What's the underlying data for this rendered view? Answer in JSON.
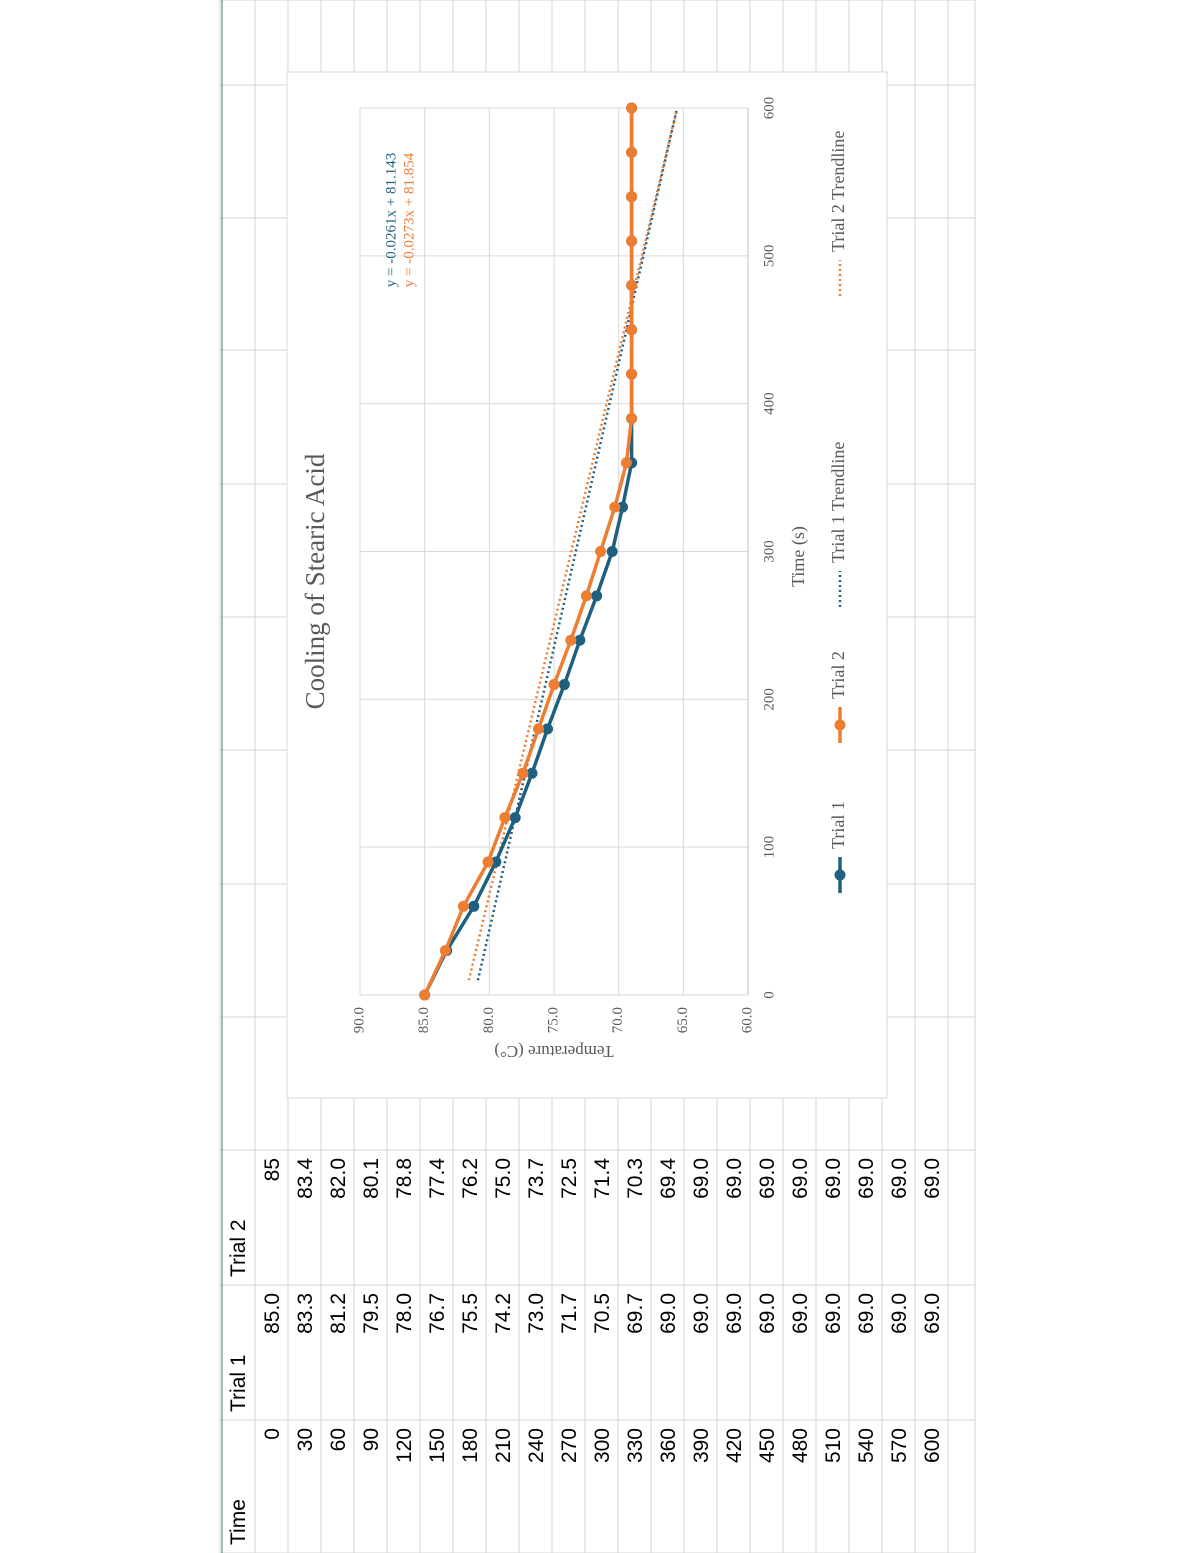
{
  "table": {
    "header": [
      "Time",
      "Trial 1",
      "Trial 2"
    ],
    "rows": [
      [
        "0",
        "85.0",
        "85"
      ],
      [
        "30",
        "83.3",
        "83.4"
      ],
      [
        "60",
        "81.2",
        "82.0"
      ],
      [
        "90",
        "79.5",
        "80.1"
      ],
      [
        "120",
        "78.0",
        "78.8"
      ],
      [
        "150",
        "76.7",
        "77.4"
      ],
      [
        "180",
        "75.5",
        "76.2"
      ],
      [
        "210",
        "74.2",
        "75.0"
      ],
      [
        "240",
        "73.0",
        "73.7"
      ],
      [
        "270",
        "71.7",
        "72.5"
      ],
      [
        "300",
        "70.5",
        "71.4"
      ],
      [
        "330",
        "69.7",
        "70.3"
      ],
      [
        "360",
        "69.0",
        "69.4"
      ],
      [
        "390",
        "69.0",
        "69.0"
      ],
      [
        "420",
        "69.0",
        "69.0"
      ],
      [
        "450",
        "69.0",
        "69.0"
      ],
      [
        "480",
        "69.0",
        "69.0"
      ],
      [
        "510",
        "69.0",
        "69.0"
      ],
      [
        "540",
        "69.0",
        "69.0"
      ],
      [
        "570",
        "69.0",
        "69.0"
      ],
      [
        "600",
        "69.0",
        "69.0"
      ]
    ]
  },
  "chart_data": {
    "type": "line",
    "title": "Cooling of Stearic Acid",
    "x_label": "Time (s)",
    "y_label": "Temperature (C°)",
    "x": [
      0,
      30,
      60,
      90,
      120,
      150,
      180,
      210,
      240,
      270,
      300,
      330,
      360,
      390,
      420,
      450,
      480,
      510,
      540,
      570,
      600
    ],
    "series": [
      {
        "name": "Trial 1",
        "color": "#1f5f7f",
        "values": [
          85.0,
          83.3,
          81.2,
          79.5,
          78.0,
          76.7,
          75.5,
          74.2,
          73.0,
          71.7,
          70.5,
          69.7,
          69.0,
          69.0,
          69.0,
          69.0,
          69.0,
          69.0,
          69.0,
          69.0,
          69.0
        ]
      },
      {
        "name": "Trial 2",
        "color": "#ed7d31",
        "values": [
          85,
          83.4,
          82.0,
          80.1,
          78.8,
          77.4,
          76.2,
          75.0,
          73.7,
          72.5,
          71.4,
          70.3,
          69.4,
          69.0,
          69.0,
          69.0,
          69.0,
          69.0,
          69.0,
          69.0,
          69.0
        ]
      }
    ],
    "trendlines": [
      {
        "name": "Trial 1 Trendline",
        "color": "#1f5f7f",
        "slope": -0.0261,
        "intercept": 81.143,
        "equation": "y = -0.0261x + 81.143"
      },
      {
        "name": "Trial 2 Trendline",
        "color": "#ed7d31",
        "slope": -0.0273,
        "intercept": 81.854,
        "equation": "y = -0.0273x + 81.854"
      }
    ],
    "xlim": [
      0,
      600
    ],
    "xticks": [
      0,
      100,
      200,
      300,
      400,
      500,
      600
    ],
    "ylim": [
      60,
      90
    ],
    "yticks": [
      {
        "value": 60,
        "label": "60.0"
      },
      {
        "value": 65,
        "label": "65.0"
      },
      {
        "value": 70,
        "label": "70.0"
      },
      {
        "value": 75,
        "label": "75.0"
      },
      {
        "value": 80,
        "label": "80.0"
      },
      {
        "value": 85,
        "label": "85.0"
      },
      {
        "value": 90,
        "label": "90.0"
      }
    ],
    "grid": true,
    "legend": "bottom"
  }
}
